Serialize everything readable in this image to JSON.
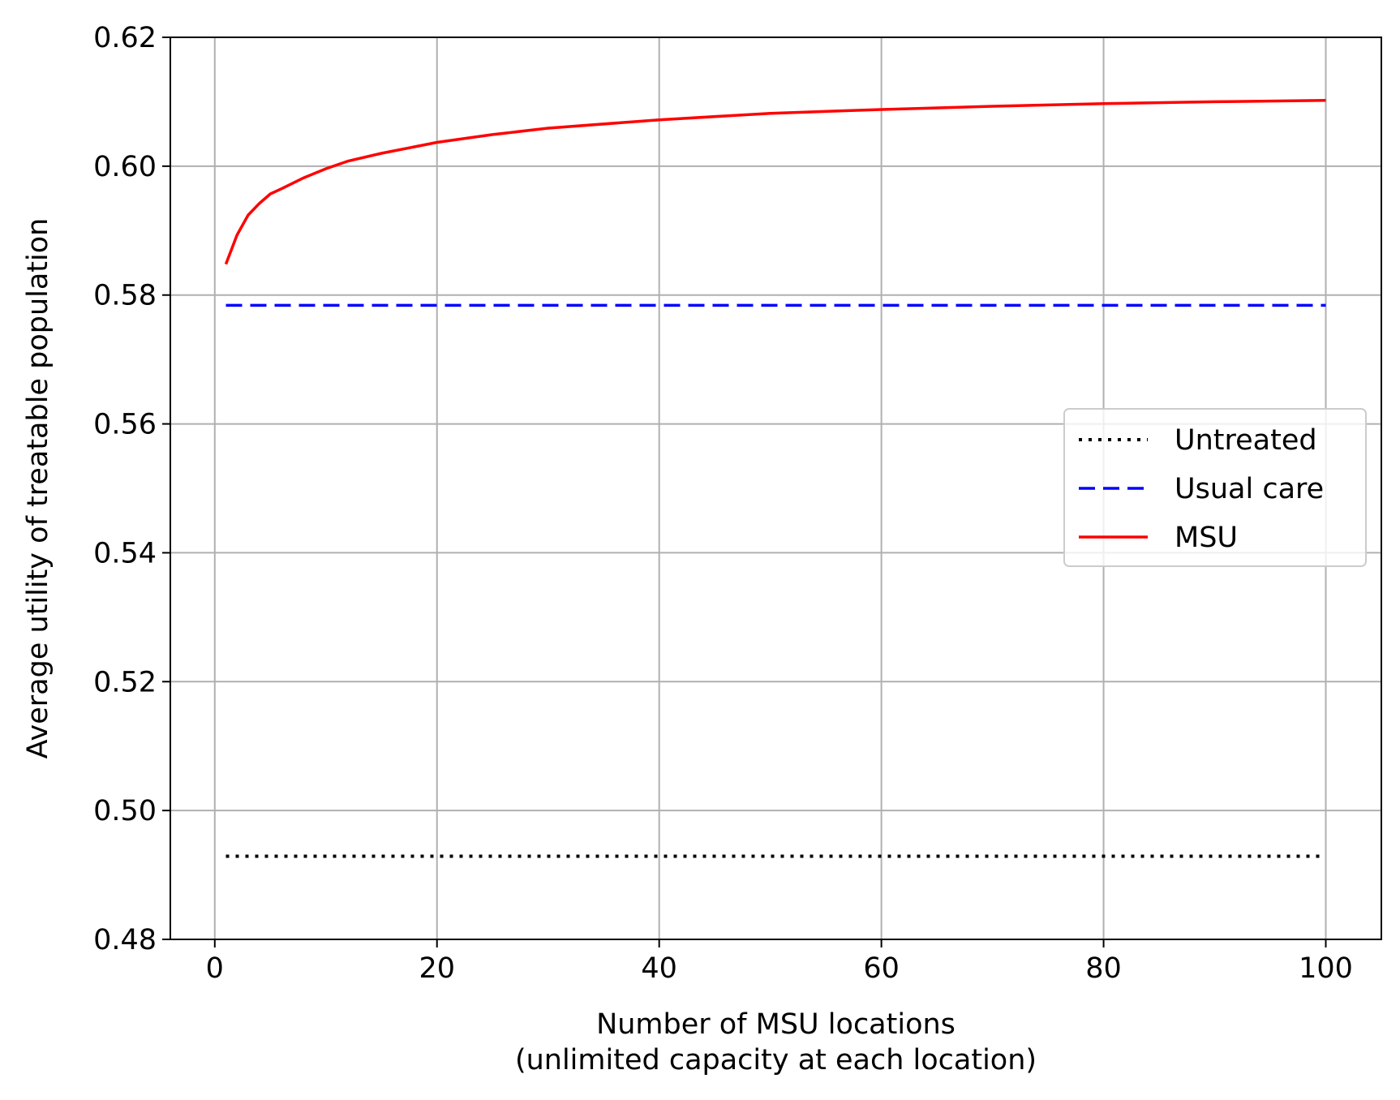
{
  "chart_data": {
    "type": "line",
    "title": "",
    "xlabel_line1": "Number of MSU locations",
    "xlabel_line2": "(unlimited capacity at each location)",
    "ylabel": "Average utility of treatable population",
    "xlim": [
      -4,
      105
    ],
    "ylim": [
      0.48,
      0.62
    ],
    "xticks": [
      0,
      20,
      40,
      60,
      80,
      100
    ],
    "xtick_labels": [
      "0",
      "20",
      "40",
      "60",
      "80",
      "100"
    ],
    "yticks": [
      0.48,
      0.5,
      0.52,
      0.54,
      0.56,
      0.58,
      0.6,
      0.62
    ],
    "ytick_labels": [
      "0.48",
      "0.50",
      "0.52",
      "0.54",
      "0.56",
      "0.58",
      "0.60",
      "0.62"
    ],
    "grid": true,
    "legend_position": "center-right",
    "series": [
      {
        "name": "Untreated",
        "style": "dotted",
        "color": "#000000",
        "x": [
          1,
          100
        ],
        "y": [
          0.4929,
          0.4929
        ]
      },
      {
        "name": "Usual care",
        "style": "dashed",
        "color": "#0000ff",
        "x": [
          1,
          100
        ],
        "y": [
          0.5784,
          0.5784
        ]
      },
      {
        "name": "MSU",
        "style": "solid",
        "color": "#ff0000",
        "x": [
          1,
          2,
          3,
          4,
          5,
          6,
          8,
          10,
          12,
          15,
          20,
          25,
          30,
          40,
          50,
          60,
          70,
          80,
          90,
          100
        ],
        "y": [
          0.5848,
          0.5893,
          0.5924,
          0.5942,
          0.5957,
          0.5965,
          0.5982,
          0.5996,
          0.6008,
          0.602,
          0.6037,
          0.6049,
          0.6059,
          0.6072,
          0.6082,
          0.6088,
          0.6093,
          0.6097,
          0.61,
          0.6102
        ]
      }
    ]
  }
}
